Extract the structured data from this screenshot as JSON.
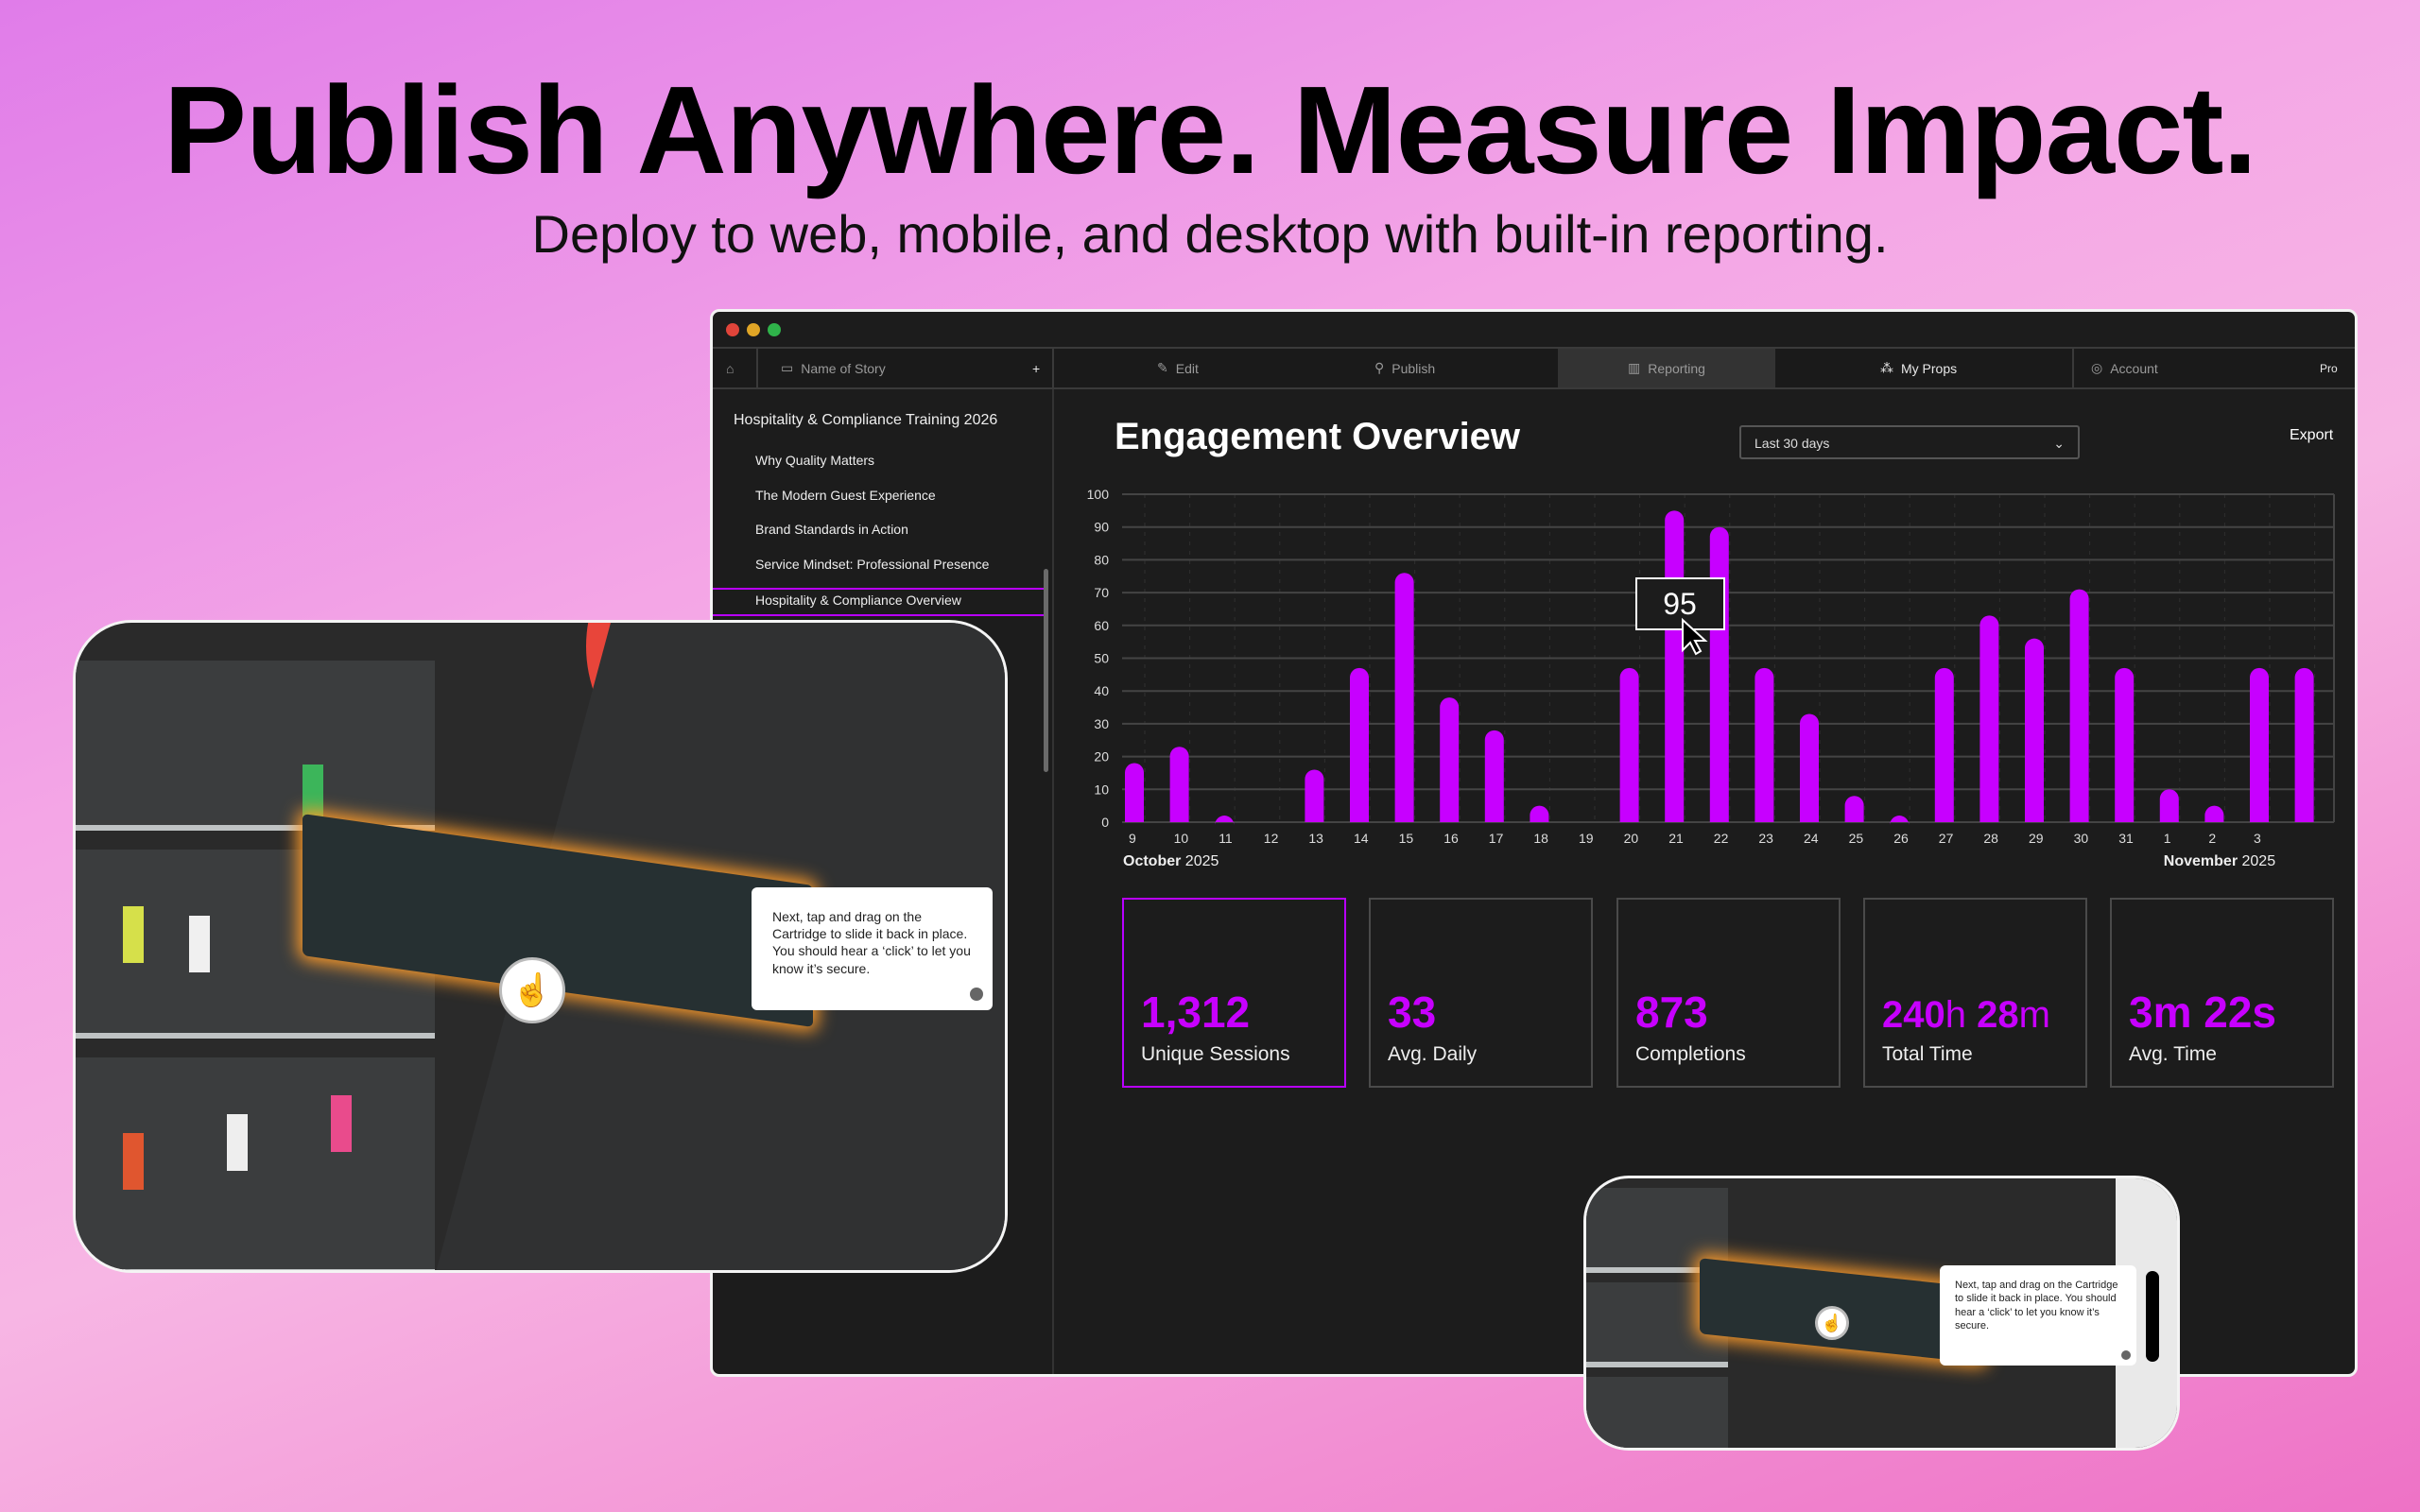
{
  "hero": {
    "headline": "Publish Anywhere. Measure Impact.",
    "subhead": "Deploy to web, mobile, and desktop with built-in reporting."
  },
  "nav": {
    "story_name": "Name of Story",
    "add": "+",
    "edit": "Edit",
    "publish": "Publish",
    "reporting": "Reporting",
    "my_props": "My Props",
    "account": "Account",
    "plan": "Pro",
    "active": "Reporting"
  },
  "sidebar": {
    "title": "Hospitality & Compliance Training 2026",
    "items": [
      {
        "label": "Why Quality Matters"
      },
      {
        "label": "The Modern Guest Experience"
      },
      {
        "label": "Brand Standards in Action"
      },
      {
        "label": "Service Mindset: Professional Presence"
      },
      {
        "label": "Hospitality & Compliance Overview",
        "selected": true
      }
    ]
  },
  "main": {
    "title": "Engagement Overview",
    "range": "Last 30 days",
    "export": "Export"
  },
  "chart_data": {
    "type": "bar",
    "categories": [
      "9",
      "10",
      "11",
      "12",
      "13",
      "14",
      "15",
      "16",
      "17",
      "18",
      "19",
      "20",
      "21",
      "22",
      "23",
      "24",
      "25",
      "26",
      "27",
      "28",
      "29",
      "30",
      "31",
      "1",
      "2",
      "3",
      ""
    ],
    "values": [
      18,
      23,
      2,
      0,
      16,
      47,
      76,
      38,
      28,
      5,
      0,
      47,
      95,
      90,
      47,
      33,
      8,
      2,
      47,
      63,
      56,
      71,
      47,
      10,
      5,
      47,
      47
    ],
    "ylim": [
      0,
      100
    ],
    "yticks": [
      0,
      10,
      20,
      30,
      40,
      50,
      60,
      70,
      80,
      90,
      100
    ],
    "month_labels": [
      {
        "month": "October",
        "year": "2025"
      },
      {
        "month": "November",
        "year": "2025"
      }
    ],
    "tooltip": "95",
    "color": "#c700ff",
    "grid": true
  },
  "stats": [
    {
      "value": "1,312",
      "label": "Unique Sessions",
      "selected": true
    },
    {
      "value": "33",
      "label": "Avg. Daily"
    },
    {
      "value": "873",
      "label": "Completions"
    },
    {
      "value_h": "240",
      "unit_h": "h",
      "value_m": "28",
      "unit_m": "m",
      "label": "Total Time"
    },
    {
      "value": "3m 22s",
      "label": "Avg. Time"
    }
  ],
  "preview": {
    "instruction": "Next, tap and drag on the Cartridge to slide it back in place. You should hear a ‘click’ to let you know it’s secure."
  }
}
